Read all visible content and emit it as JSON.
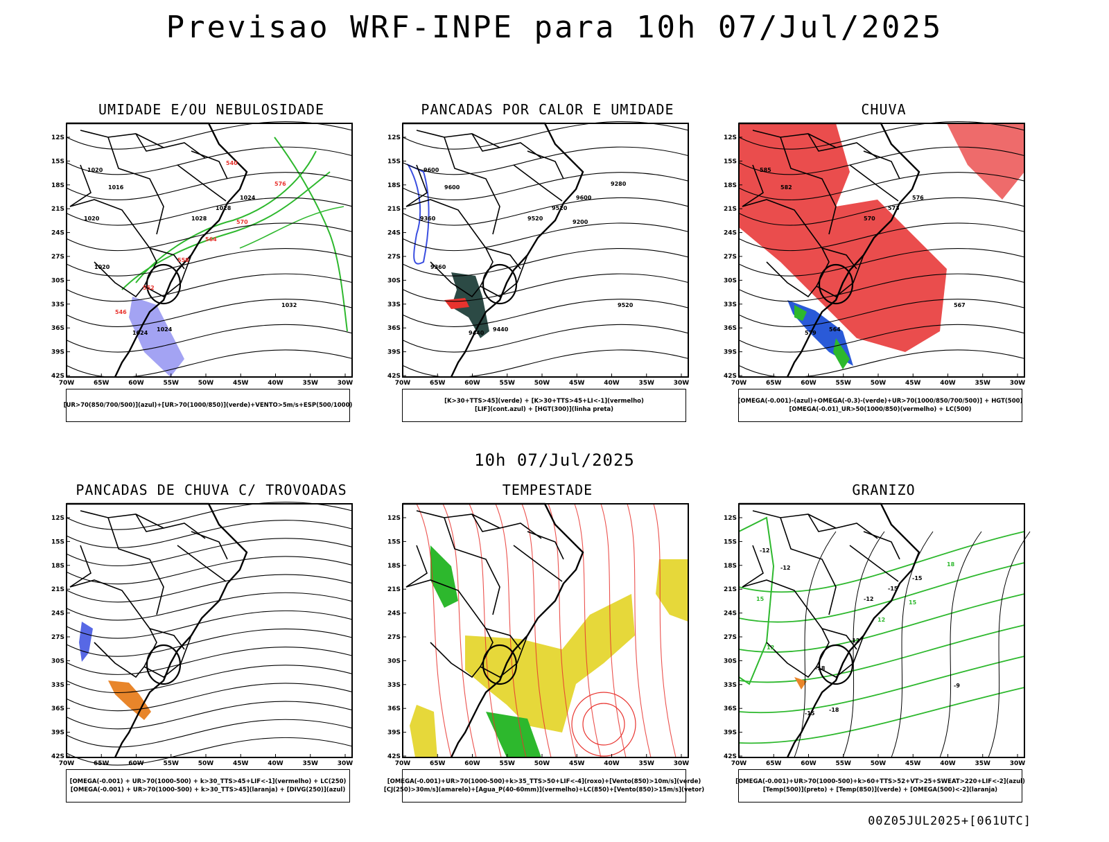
{
  "header": {
    "title": "Previsao WRF-INPE  para 10h 07/Jul/2025"
  },
  "mid_label": "10h 07/Jul/2025",
  "footer": "00Z05JUL2025+[061UTC]",
  "axes": {
    "lat_labels": [
      "12S",
      "15S",
      "18S",
      "21S",
      "24S",
      "27S",
      "30S",
      "33S",
      "36S",
      "39S",
      "42S"
    ],
    "lon_labels": [
      "70W",
      "65W",
      "60W",
      "55W",
      "50W",
      "45W",
      "40W",
      "35W",
      "30W"
    ]
  },
  "panels": [
    {
      "id": "umidade",
      "title": "UMIDADE E/OU NEBULOSIDADE",
      "legend": [
        "[UR>70(850/700/500)](azul)+[UR>70(1000/850)](verde)+VENTO>5m/s+ESP(500/1000)"
      ],
      "contour_labels": [
        "1020",
        "1016",
        "1024",
        "1028",
        "1028",
        "1032",
        "1024",
        "1024",
        "1020",
        "1020",
        "576",
        "570",
        "564",
        "558",
        "552",
        "546",
        "540"
      ],
      "colors": {
        "primary": "#2db82d",
        "secondary": "#e8332e",
        "fill": "#8c8cf0"
      }
    },
    {
      "id": "pancadas-calor",
      "title": "PANCADAS POR CALOR E UMIDADE",
      "legend": [
        "[K>30+TTS>45](verde) + [K>30+TTS>45+LI<-1](vermelho)",
        "[LIF](cont.azul) + [HGT(300)](linha preta)"
      ],
      "contour_labels": [
        "9600",
        "9600",
        "9600",
        "9520",
        "9520",
        "9520",
        "9440",
        "9440",
        "9360",
        "9360",
        "9280",
        "9200"
      ],
      "colors": {
        "primary": "#2c4a45",
        "secondary": "#e8332e",
        "fill": "#3a4ee0"
      }
    },
    {
      "id": "chuva",
      "title": "CHUVA",
      "legend": [
        "[OMEGA(-0.001)-(azul)+OMEGA(-0.3)-(verde)+UR>70(1000/850/700/500)] + HGT(500)",
        "[OMEGA(-0.01)_UR>50(1000/850)(vermelho) + LC(500)"
      ],
      "contour_labels": [
        "585",
        "582",
        "576",
        "573",
        "570",
        "567",
        "564",
        "579"
      ],
      "colors": {
        "primary": "#e83a3a",
        "secondary": "#2a5ad8",
        "fill": "#2db82d"
      }
    },
    {
      "id": "trovoadas",
      "title": "PANCADAS DE CHUVA C/ TROVOADAS",
      "legend": [
        "[OMEGA(-0.001) + UR>70(1000-500) + k>30_TTS>45+LIF<-1](vermelho) + LC(250)",
        "[OMEGA(-0.001) + UR>70(1000-500) + k>30_TTS>45](laranja) + [DIVG(250)](azul)"
      ],
      "contour_labels": [],
      "colors": {
        "primary": "#e8852a",
        "secondary": "#3a4ee0",
        "fill": "#000000"
      }
    },
    {
      "id": "tempestade",
      "title": "TEMPESTADE",
      "legend": [
        "[OMEGA(-0.001)+UR>70(1000-500)+k>35_TTS>50+LIF<-4](roxo)+[Vento(850)>10m/s](verde)",
        "[CJ(250)>30m/s](amarelo)+[Agua_P(40-60mm)](vermelho)+LC(850)+[Vento(850)>15m/s](vetor)"
      ],
      "contour_labels": [],
      "colors": {
        "primary": "#e6d83a",
        "secondary": "#e8332e",
        "fill": "#2db82d"
      }
    },
    {
      "id": "granizo",
      "title": "GRANIZO",
      "legend": [
        "[OMEGA(-0.001)+UR>70(1000-500)+k>60+TTS>52+VT>25+SWEAT>220+LIF<-2](azul)",
        "[Temp(500)](preto) + [Temp(850)](verde) + [OMEGA(500)<-2](laranja)"
      ],
      "contour_labels": [
        "-12",
        "-12",
        "-15",
        "-15",
        "-12",
        "-9",
        "-18",
        "-15",
        "12",
        "15",
        "18",
        "15",
        "12",
        "-12",
        "-18"
      ],
      "colors": {
        "primary": "#2db82d",
        "secondary": "#000000",
        "fill": "#e8852a"
      }
    }
  ]
}
